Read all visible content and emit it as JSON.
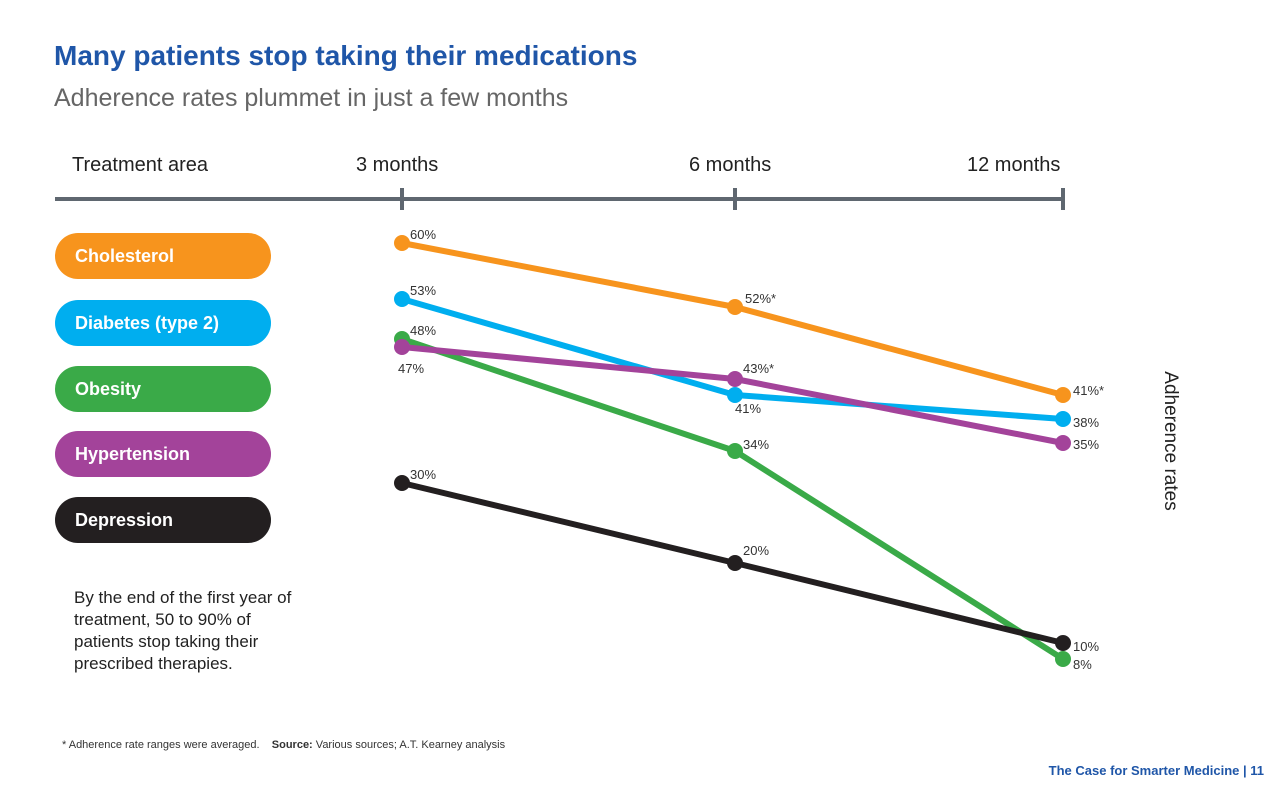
{
  "title": "Many patients stop taking their medications",
  "subtitle": "Adherence rates plummet in just a few months",
  "note": "By the end of the first year of treatment, 50 to 90% of patients stop taking their prescribed therapies.",
  "footnote": "* Adherence rate ranges were averaged.",
  "source_label": "Source:",
  "source_text": "Various sources; A.T. Kearney analysis",
  "page_footer": "The Case for Smarter Medicine | 11",
  "chart_data": {
    "type": "line",
    "header_label": "Treatment area",
    "categories": [
      "3 months",
      "6 months",
      "12 months"
    ],
    "ylabel": "Adherence rates",
    "series": [
      {
        "name": "Cholesterol",
        "color": "#f7941d",
        "values": [
          60,
          52,
          41
        ],
        "labels": [
          "60%",
          "52%*",
          "41%*"
        ]
      },
      {
        "name": "Diabetes (type 2)",
        "color": "#00aeef",
        "values": [
          53,
          41,
          38
        ],
        "labels": [
          "53%",
          "41%",
          "38%"
        ]
      },
      {
        "name": "Obesity",
        "color": "#3aaa48",
        "values": [
          48,
          34,
          8
        ],
        "labels": [
          "48%",
          "34%",
          "8%"
        ]
      },
      {
        "name": "Hypertension",
        "color": "#a3439a",
        "values": [
          47,
          43,
          35
        ],
        "labels": [
          "47%",
          "43%*",
          "35%"
        ]
      },
      {
        "name": "Depression",
        "color": "#231f20",
        "values": [
          30,
          20,
          10
        ],
        "labels": [
          "30%",
          "20%",
          "10%"
        ]
      }
    ]
  }
}
